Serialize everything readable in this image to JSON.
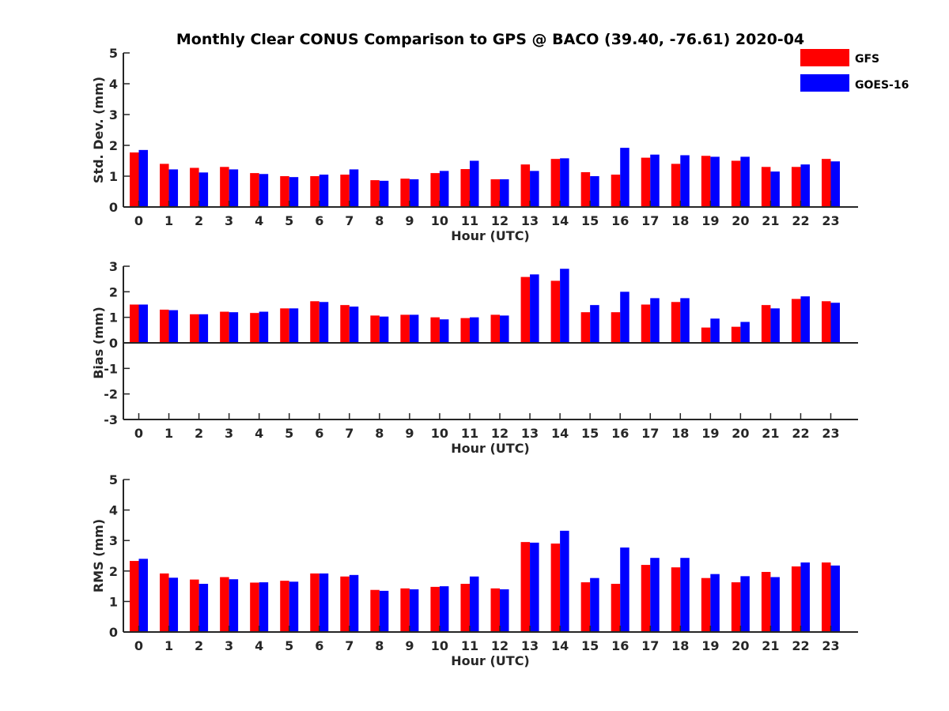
{
  "chart_data": [
    {
      "type": "bar",
      "title": "Monthly Clear CONUS Comparison to GPS @ BACO (39.40, -76.61) 2020-04",
      "xlabel": "Hour (UTC)",
      "ylabel": "Std. Dev. (mm)",
      "ylim": [
        0,
        5
      ],
      "yticks": [
        "0",
        "1",
        "2",
        "3",
        "4",
        "5"
      ],
      "categories": [
        "0",
        "1",
        "2",
        "3",
        "4",
        "5",
        "6",
        "7",
        "8",
        "9",
        "10",
        "11",
        "12",
        "13",
        "14",
        "15",
        "16",
        "17",
        "18",
        "19",
        "20",
        "21",
        "22",
        "23"
      ],
      "series": [
        {
          "name": "GFS",
          "color": "#ff0000",
          "values": [
            1.77,
            1.4,
            1.27,
            1.3,
            1.1,
            1.0,
            1.0,
            1.05,
            0.87,
            0.92,
            1.1,
            1.23,
            0.9,
            1.38,
            1.56,
            1.13,
            1.05,
            1.6,
            1.4,
            1.66,
            1.5,
            1.3,
            1.3,
            1.56
          ]
        },
        {
          "name": "GOES-16",
          "color": "#0000ff",
          "values": [
            1.85,
            1.22,
            1.12,
            1.22,
            1.07,
            0.97,
            1.05,
            1.22,
            0.85,
            0.9,
            1.17,
            1.5,
            0.9,
            1.17,
            1.58,
            1.0,
            1.92,
            1.7,
            1.68,
            1.63,
            1.63,
            1.15,
            1.38,
            1.48
          ]
        }
      ],
      "legend": "top-right",
      "grid": false
    },
    {
      "type": "bar",
      "xlabel": "Hour (UTC)",
      "ylabel": "Bias (mm)",
      "ylim": [
        -3,
        3
      ],
      "yticks": [
        "-3",
        "-2",
        "-1",
        "0",
        "1",
        "2",
        "3"
      ],
      "categories": [
        "0",
        "1",
        "2",
        "3",
        "4",
        "5",
        "6",
        "7",
        "8",
        "9",
        "10",
        "11",
        "12",
        "13",
        "14",
        "15",
        "16",
        "17",
        "18",
        "19",
        "20",
        "21",
        "22",
        "23"
      ],
      "series": [
        {
          "name": "GFS",
          "color": "#ff0000",
          "values": [
            1.5,
            1.3,
            1.12,
            1.22,
            1.17,
            1.35,
            1.63,
            1.48,
            1.07,
            1.1,
            1.0,
            0.97,
            1.1,
            2.58,
            2.43,
            1.2,
            1.2,
            1.5,
            1.6,
            0.6,
            0.63,
            1.48,
            1.72,
            1.63
          ]
        },
        {
          "name": "GOES-16",
          "color": "#0000ff",
          "values": [
            1.5,
            1.28,
            1.12,
            1.2,
            1.22,
            1.35,
            1.6,
            1.42,
            1.03,
            1.1,
            0.92,
            1.0,
            1.07,
            2.68,
            2.9,
            1.48,
            2.0,
            1.75,
            1.75,
            0.95,
            0.82,
            1.35,
            1.82,
            1.57
          ]
        }
      ],
      "grid": false
    },
    {
      "type": "bar",
      "xlabel": "Hour (UTC)",
      "ylabel": "RMS (mm)",
      "ylim": [
        0,
        5
      ],
      "yticks": [
        "0",
        "1",
        "2",
        "3",
        "4",
        "5"
      ],
      "categories": [
        "0",
        "1",
        "2",
        "3",
        "4",
        "5",
        "6",
        "7",
        "8",
        "9",
        "10",
        "11",
        "12",
        "13",
        "14",
        "15",
        "16",
        "17",
        "18",
        "19",
        "20",
        "21",
        "22",
        "23"
      ],
      "series": [
        {
          "name": "GFS",
          "color": "#ff0000",
          "values": [
            2.33,
            1.92,
            1.72,
            1.8,
            1.62,
            1.68,
            1.92,
            1.82,
            1.38,
            1.43,
            1.48,
            1.58,
            1.43,
            2.95,
            2.9,
            1.63,
            1.58,
            2.2,
            2.12,
            1.77,
            1.63,
            1.97,
            2.15,
            2.28
          ]
        },
        {
          "name": "GOES-16",
          "color": "#0000ff",
          "values": [
            2.4,
            1.78,
            1.58,
            1.73,
            1.63,
            1.65,
            1.92,
            1.87,
            1.35,
            1.4,
            1.5,
            1.82,
            1.4,
            2.93,
            3.32,
            1.77,
            2.77,
            2.43,
            2.43,
            1.9,
            1.83,
            1.8,
            2.28,
            2.18
          ]
        }
      ],
      "grid": false
    }
  ]
}
